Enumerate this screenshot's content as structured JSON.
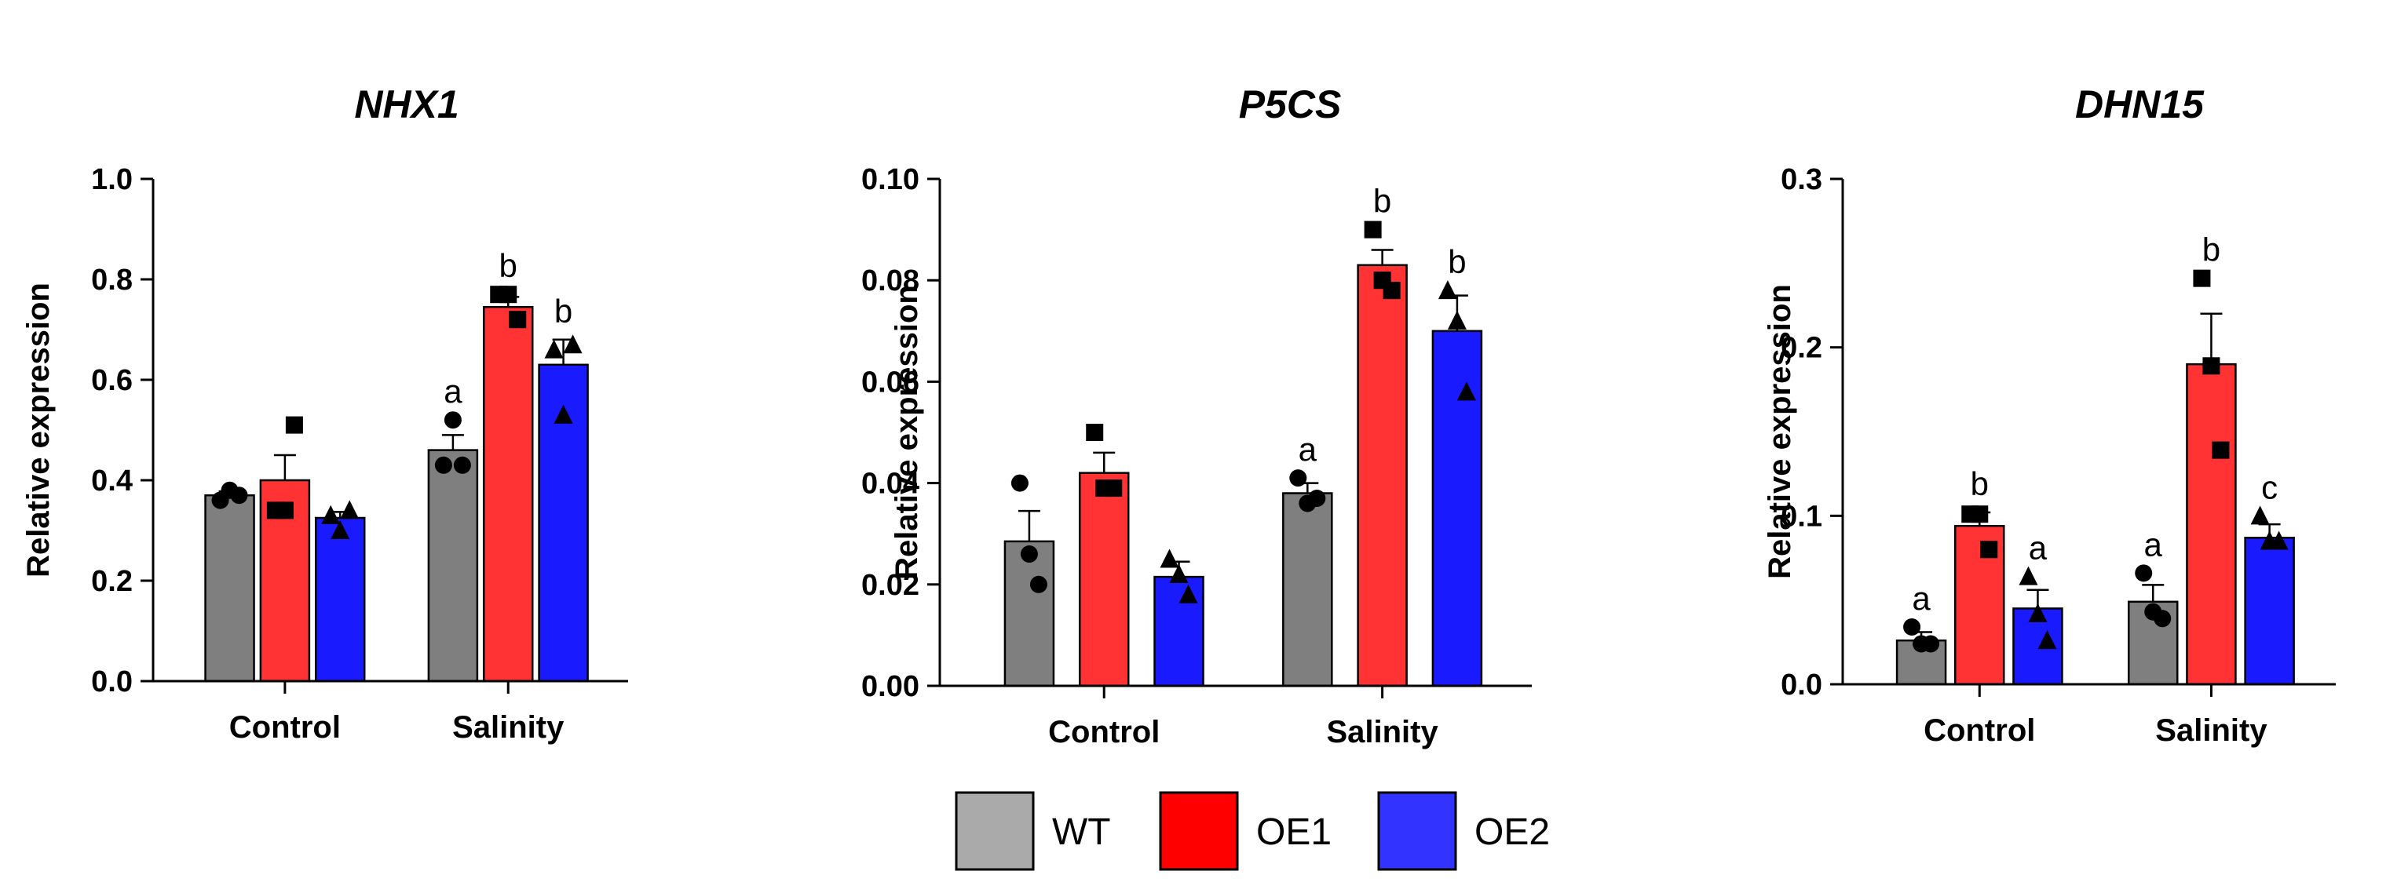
{
  "legend": {
    "items": [
      {
        "label": "WT",
        "color": "#7f7f7f"
      },
      {
        "label": "OE1",
        "color": "#ff3333"
      },
      {
        "label": "OE2",
        "color": "#1a1aff"
      }
    ],
    "legend_colors": [
      "#aaaaaa",
      "#ff0000",
      "#3333ff"
    ]
  },
  "chart_data": [
    {
      "type": "bar",
      "title": "NHX1",
      "xlabel": "",
      "ylabel": "Relative expression",
      "categories": [
        "Control",
        "Salinity"
      ],
      "ylim": [
        0,
        1.0
      ],
      "yticks": [
        "0.0",
        "0.2",
        "0.4",
        "0.6",
        "0.8",
        "1.0"
      ],
      "series": [
        {
          "name": "WT",
          "values": [
            0.37,
            0.46
          ],
          "errors": [
            0.008,
            0.03
          ],
          "points": [
            [
              0.36,
              0.38,
              0.37
            ],
            [
              0.43,
              0.52,
              0.43
            ]
          ],
          "marker": "circle",
          "labels": [
            "",
            "a"
          ]
        },
        {
          "name": "OE1",
          "values": [
            0.4,
            0.745
          ],
          "errors": [
            0.05,
            0.02
          ],
          "points": [
            [
              0.34,
              0.34,
              0.51
            ],
            [
              0.77,
              0.77,
              0.72
            ]
          ],
          "marker": "square",
          "labels": [
            "",
            "b"
          ]
        },
        {
          "name": "OE2",
          "values": [
            0.325,
            0.63
          ],
          "errors": [
            0.012,
            0.05
          ],
          "points": [
            [
              0.33,
              0.3,
              0.34
            ],
            [
              0.66,
              0.53,
              0.67
            ]
          ],
          "marker": "triangle",
          "labels": [
            "",
            "b"
          ]
        }
      ]
    },
    {
      "type": "bar",
      "title": "P5CS",
      "xlabel": "",
      "ylabel": "Relative expression",
      "categories": [
        "Control",
        "Salinity"
      ],
      "ylim": [
        0,
        0.1
      ],
      "yticks": [
        "0.00",
        "0.02",
        "0.04",
        "0.06",
        "0.08",
        "0.10"
      ],
      "series": [
        {
          "name": "WT",
          "values": [
            0.0285,
            0.038
          ],
          "errors": [
            0.006,
            0.002
          ],
          "points": [
            [
              0.04,
              0.026,
              0.02
            ],
            [
              0.041,
              0.036,
              0.037
            ]
          ],
          "marker": "circle",
          "labels": [
            "",
            "a"
          ]
        },
        {
          "name": "OE1",
          "values": [
            0.042,
            0.083
          ],
          "errors": [
            0.004,
            0.003
          ],
          "points": [
            [
              0.05,
              0.039,
              0.039
            ],
            [
              0.09,
              0.08,
              0.078
            ]
          ],
          "marker": "square",
          "labels": [
            "",
            "b"
          ]
        },
        {
          "name": "OE2",
          "values": [
            0.0215,
            0.07
          ],
          "errors": [
            0.003,
            0.007
          ],
          "points": [
            [
              0.025,
              0.022,
              0.018
            ],
            [
              0.078,
              0.072,
              0.058
            ]
          ],
          "marker": "triangle",
          "labels": [
            "",
            "b"
          ]
        }
      ]
    },
    {
      "type": "bar",
      "title": "DHN15",
      "xlabel": "",
      "ylabel": "Relative expression",
      "categories": [
        "Control",
        "Salinity"
      ],
      "ylim": [
        0,
        0.3
      ],
      "yticks": [
        "0.0",
        "0.1",
        "0.2",
        "0.3"
      ],
      "series": [
        {
          "name": "WT",
          "values": [
            0.026,
            0.049
          ],
          "errors": [
            0.005,
            0.01
          ],
          "points": [
            [
              0.034,
              0.024,
              0.024
            ],
            [
              0.066,
              0.043,
              0.039
            ]
          ],
          "marker": "circle",
          "labels": [
            "a",
            "a"
          ]
        },
        {
          "name": "OE1",
          "values": [
            0.094,
            0.19
          ],
          "errors": [
            0.008,
            0.03
          ],
          "points": [
            [
              0.101,
              0.101,
              0.08
            ],
            [
              0.241,
              0.189,
              0.139
            ]
          ],
          "marker": "square",
          "labels": [
            "b",
            "b"
          ]
        },
        {
          "name": "OE2",
          "values": [
            0.045,
            0.087
          ],
          "errors": [
            0.011,
            0.008
          ],
          "points": [
            [
              0.064,
              0.042,
              0.026
            ],
            [
              0.1,
              0.085,
              0.085
            ]
          ],
          "marker": "triangle",
          "labels": [
            "a",
            "c"
          ]
        }
      ]
    }
  ]
}
